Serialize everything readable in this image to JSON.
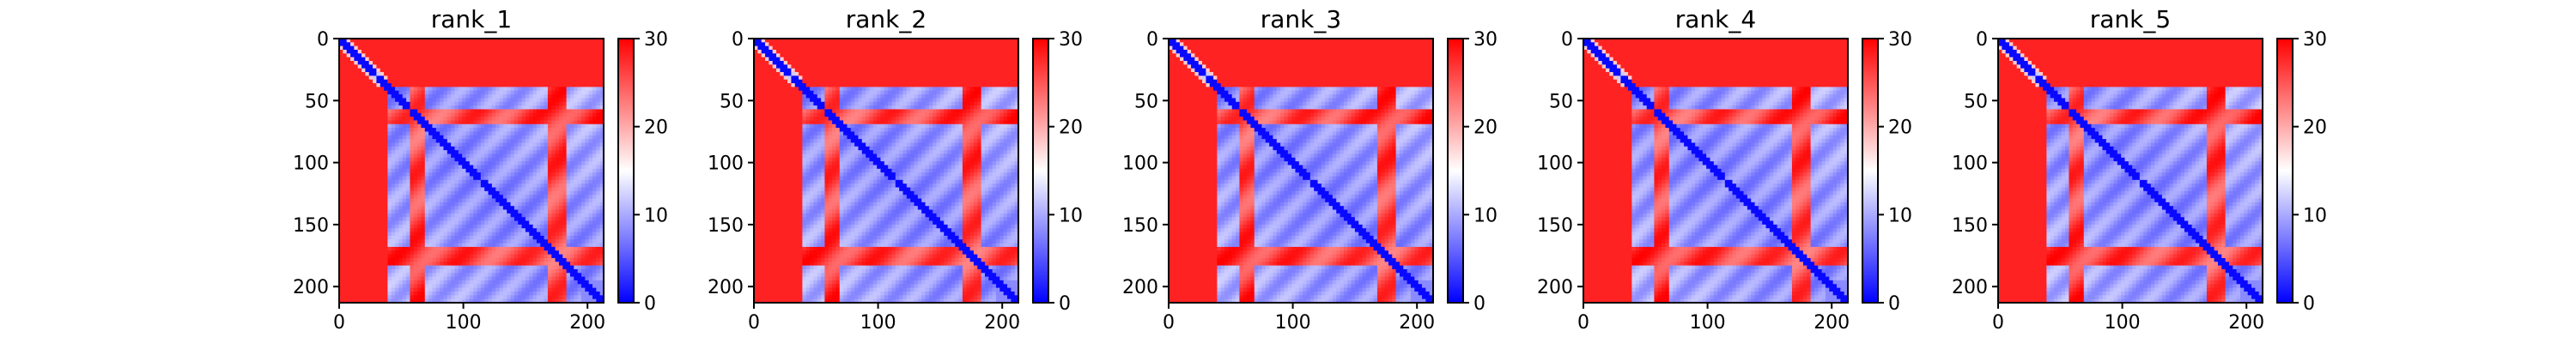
{
  "chart_data": [
    {
      "type": "heatmap",
      "title": "rank_1",
      "xlabel": "",
      "ylabel": "",
      "xlim": [
        0,
        213
      ],
      "ylim": [
        213,
        0
      ],
      "x_ticks": [
        0,
        100,
        200
      ],
      "y_ticks": [
        0,
        50,
        100,
        150,
        200
      ],
      "colorbar": {
        "vmin": 0,
        "vmax": 30,
        "ticks": [
          0,
          10,
          20,
          30
        ],
        "colormap": [
          "#0000ff",
          "#ffffff",
          "#ff0000"
        ]
      },
      "z_pattern": "symmetric predicted aligned error matrix; low values (blue) on diagonal and within residues ~40-200, high values (red) for residues 0-40 and stripes near 65, 175"
    },
    {
      "type": "heatmap",
      "title": "rank_2",
      "xlabel": "",
      "ylabel": "",
      "xlim": [
        0,
        213
      ],
      "ylim": [
        213,
        0
      ],
      "x_ticks": [
        0,
        100,
        200
      ],
      "y_ticks": [
        0,
        50,
        100,
        150,
        200
      ],
      "colorbar": {
        "vmin": 0,
        "vmax": 30,
        "ticks": [
          0,
          10,
          20,
          30
        ],
        "colormap": [
          "#0000ff",
          "#ffffff",
          "#ff0000"
        ]
      },
      "z_pattern": "same as rank_1"
    },
    {
      "type": "heatmap",
      "title": "rank_3",
      "xlabel": "",
      "ylabel": "",
      "xlim": [
        0,
        213
      ],
      "ylim": [
        213,
        0
      ],
      "x_ticks": [
        0,
        100,
        200
      ],
      "y_ticks": [
        0,
        50,
        100,
        150,
        200
      ],
      "colorbar": {
        "vmin": 0,
        "vmax": 30,
        "ticks": [
          0,
          10,
          20,
          30
        ],
        "colormap": [
          "#0000ff",
          "#ffffff",
          "#ff0000"
        ]
      },
      "z_pattern": "same as rank_1"
    },
    {
      "type": "heatmap",
      "title": "rank_4",
      "xlabel": "",
      "ylabel": "",
      "xlim": [
        0,
        213
      ],
      "ylim": [
        213,
        0
      ],
      "x_ticks": [
        0,
        100,
        200
      ],
      "y_ticks": [
        0,
        50,
        100,
        150,
        200
      ],
      "colorbar": {
        "vmin": 0,
        "vmax": 30,
        "ticks": [
          0,
          10,
          20,
          30
        ],
        "colormap": [
          "#0000ff",
          "#ffffff",
          "#ff0000"
        ]
      },
      "z_pattern": "same as rank_1"
    },
    {
      "type": "heatmap",
      "title": "rank_5",
      "xlabel": "",
      "ylabel": "",
      "xlim": [
        0,
        213
      ],
      "ylim": [
        213,
        0
      ],
      "x_ticks": [
        0,
        100,
        200
      ],
      "y_ticks": [
        0,
        50,
        100,
        150,
        200
      ],
      "colorbar": {
        "vmin": 0,
        "vmax": 30,
        "ticks": [
          0,
          10,
          20,
          30
        ],
        "colormap": [
          "#0000ff",
          "#ffffff",
          "#ff0000"
        ]
      },
      "z_pattern": "same as rank_1"
    }
  ]
}
